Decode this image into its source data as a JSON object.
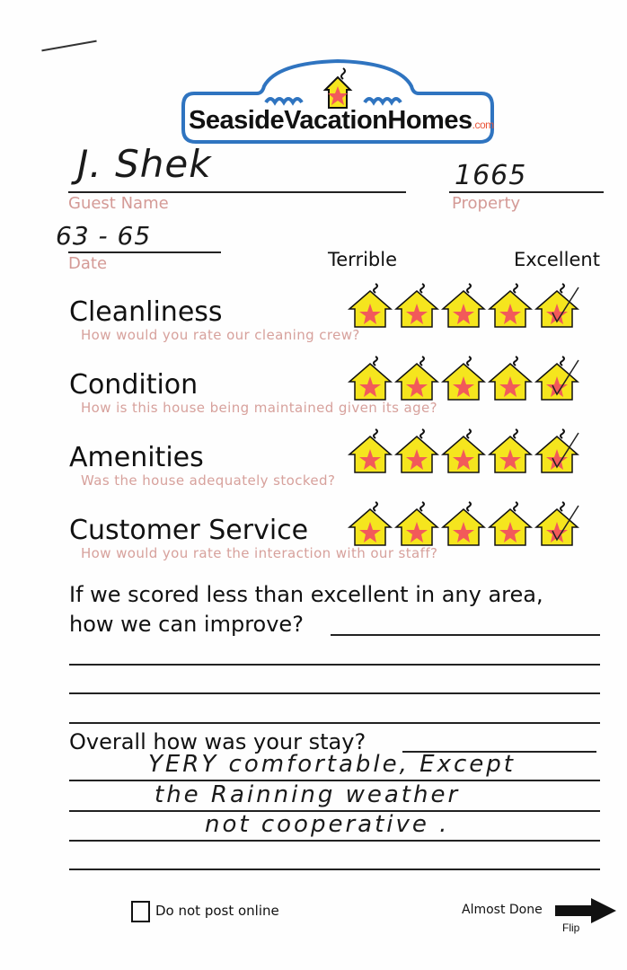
{
  "logo": {
    "brand": "SeasideVacationHomes",
    "suffix": ".com",
    "colors": {
      "outline": "#2f74c0",
      "house": "#f5e51e",
      "star": "#f25a5a"
    }
  },
  "fields": {
    "guest_name": {
      "label": "Guest Name",
      "value": "J. Shek"
    },
    "property": {
      "label": "Property",
      "value": "1665"
    },
    "date": {
      "label": "Date",
      "value": "63 - 65"
    }
  },
  "scale": {
    "low_label": "Terrible",
    "high_label": "Excellent",
    "max": 5
  },
  "ratings": [
    {
      "category": "Cleanliness",
      "question": "How would you rate our cleaning crew?",
      "checked": 5
    },
    {
      "category": "Condition",
      "question": "How is this house being maintained given its age?",
      "checked": 5
    },
    {
      "category": "Amenities",
      "question": "Was the house adequately stocked?",
      "checked": 5
    },
    {
      "category": "Customer Service",
      "question": "How would you rate the interaction with our staff?",
      "checked": 5
    }
  ],
  "improve": {
    "question_line1": "If we scored less than excellent in any area,",
    "question_line2": "how we can improve?",
    "answer": ""
  },
  "overall": {
    "question": "Overall how was your stay?",
    "answer_lines": [
      "YERY comfortable, Except",
      "the Rainning weather",
      "not cooperative ."
    ]
  },
  "footer": {
    "do_not_post_label": "Do not post online",
    "do_not_post_checked": false,
    "almost_done": "Almost Done",
    "flip": "Flip"
  }
}
